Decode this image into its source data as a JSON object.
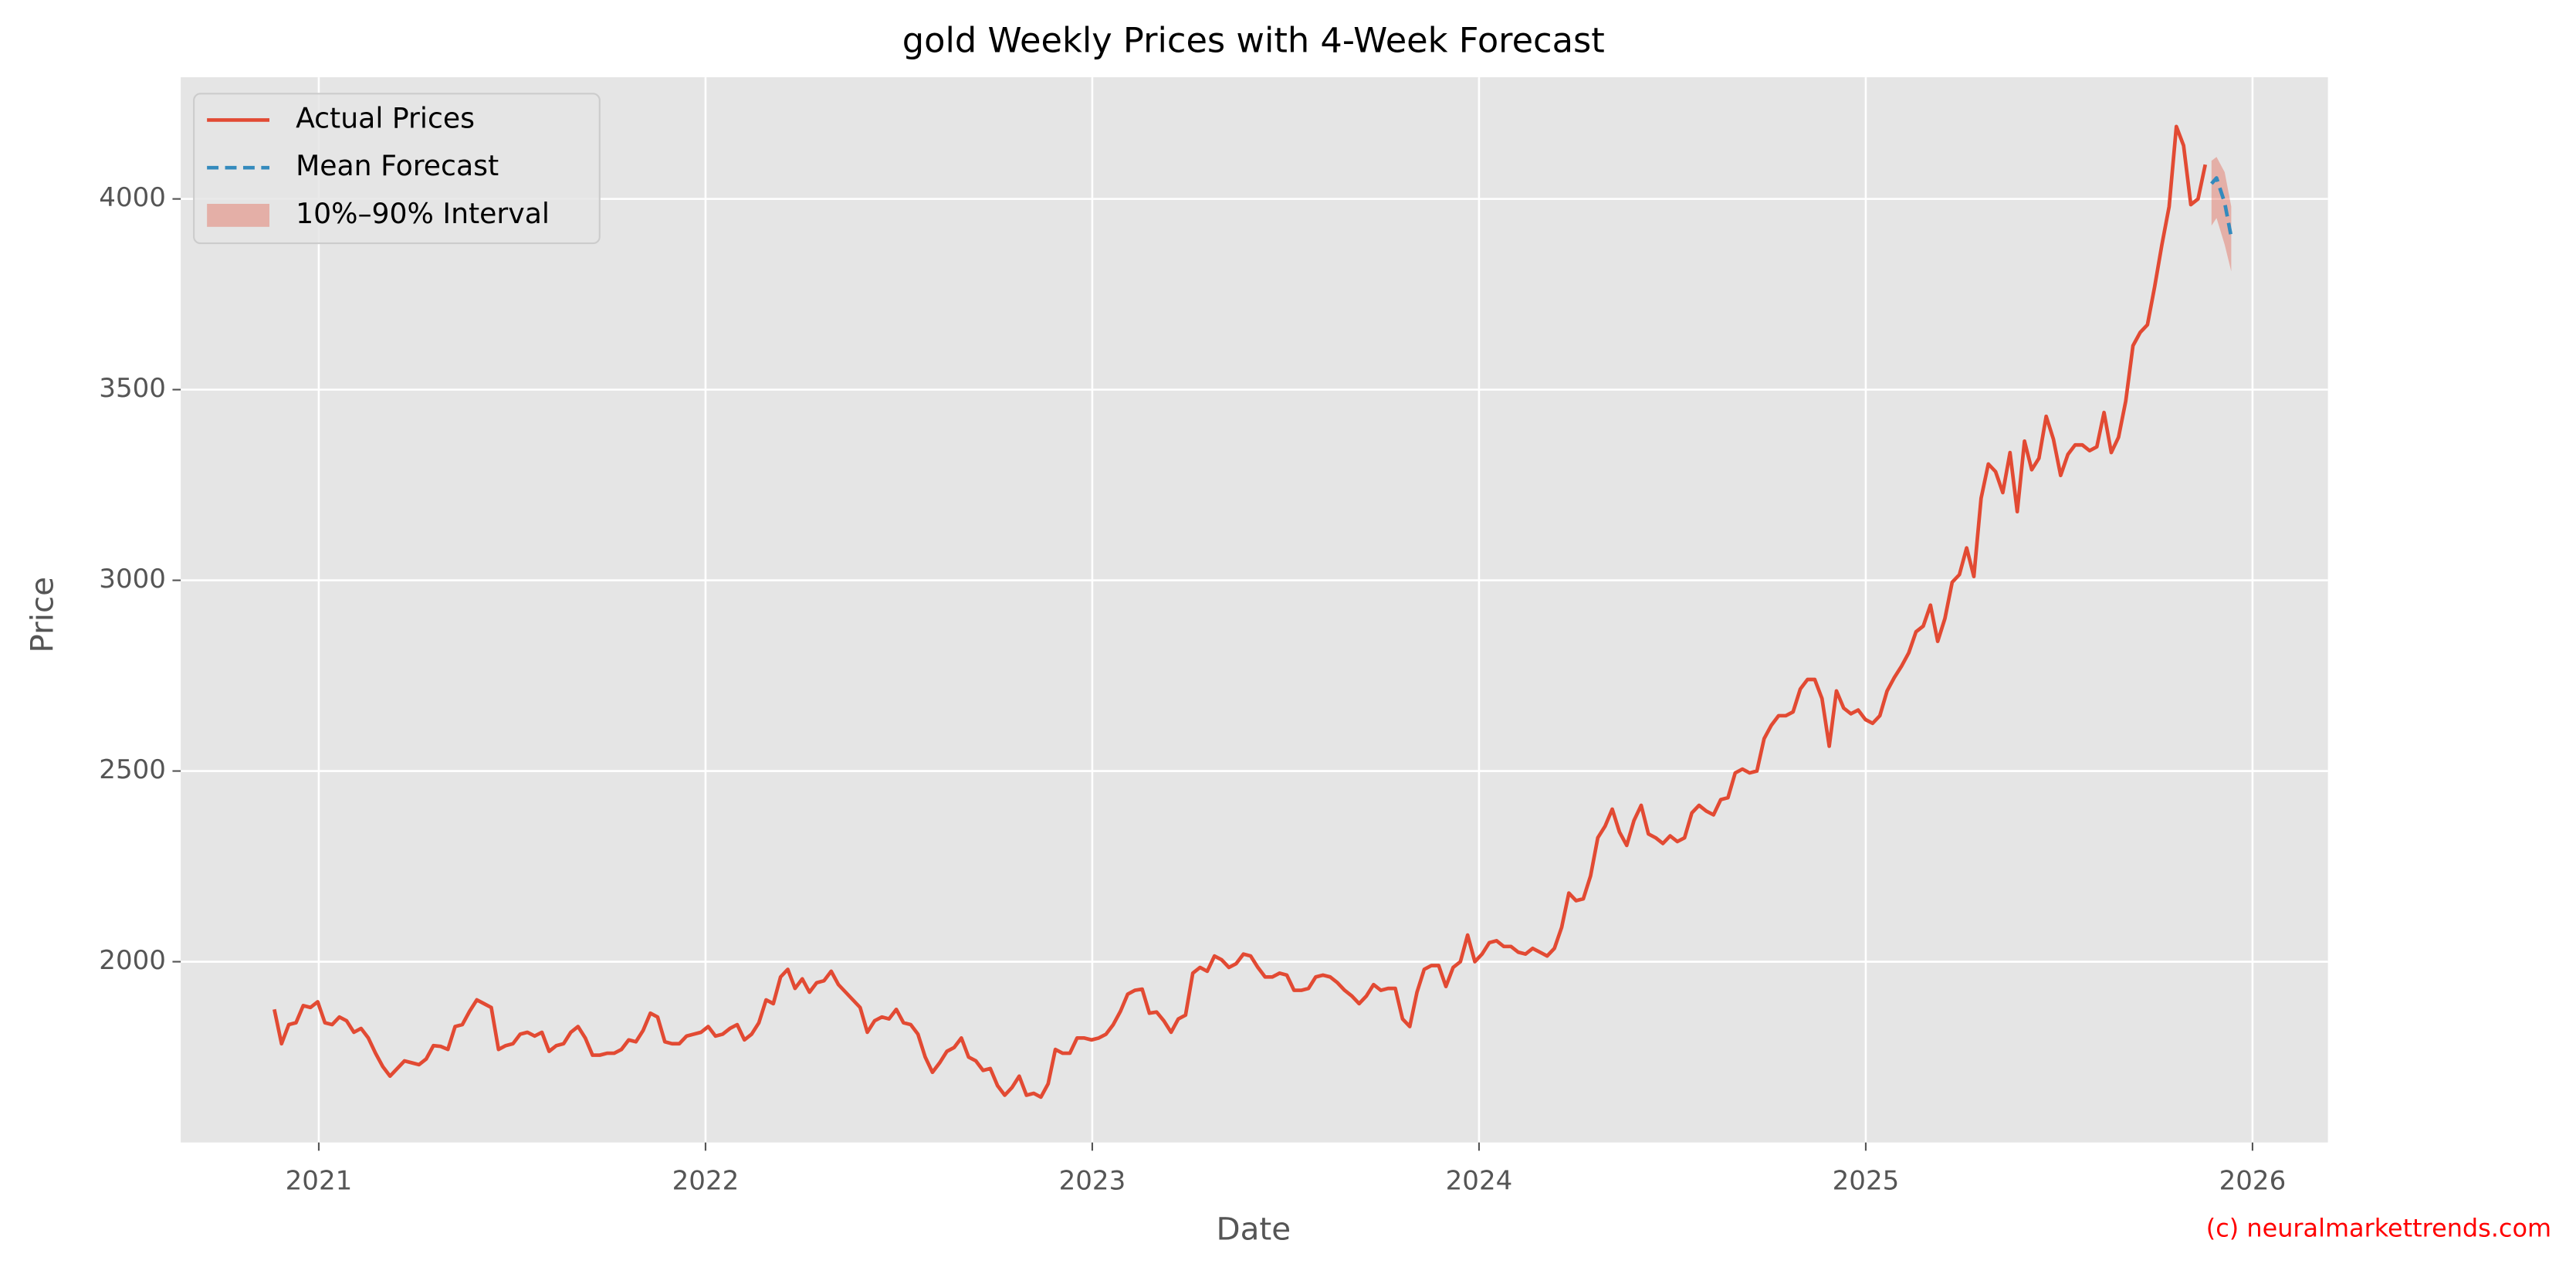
{
  "chart_data": {
    "type": "line",
    "title": "gold Weekly Prices with 4-Week Forecast",
    "xlabel": "Date",
    "ylabel": "Price",
    "xlim": [
      2020.643,
      2026.195
    ],
    "ylim": [
      1526,
      4319
    ],
    "xticks": [
      2021,
      2022,
      2023,
      2024,
      2025,
      2026
    ],
    "yticks": [
      2000,
      2500,
      3000,
      3500,
      4000
    ],
    "grid": true,
    "legend": "upper left",
    "series": [
      {
        "name": "Actual Prices",
        "color": "#E24A33",
        "style": "solid",
        "x": [
          2020.885,
          2020.9037,
          2020.9224,
          2020.9411,
          2020.9598,
          2020.9785,
          2020.9972,
          2021.0159,
          2021.0346,
          2021.0533,
          2021.072,
          2021.0907,
          2021.1094,
          2021.1281,
          2021.1468,
          2021.1655,
          2021.1842,
          2021.2029,
          2021.2216,
          2021.2403,
          2021.259,
          2021.2777,
          2021.2964,
          2021.3151,
          2021.3338,
          2021.3525,
          2021.3712,
          2021.3899,
          2021.4086,
          2021.4273,
          2021.446,
          2021.4647,
          2021.4834,
          2021.5021,
          2021.5208,
          2021.5395,
          2021.5582,
          2021.5769,
          2021.5956,
          2021.6143,
          2021.633,
          2021.6517,
          2021.6704,
          2021.6891,
          2021.7078,
          2021.7265,
          2021.7452,
          2021.7639,
          2021.7826,
          2021.8013,
          2021.82,
          2021.8387,
          2021.8574,
          2021.8761,
          2021.8948,
          2021.9135,
          2021.9322,
          2021.9509,
          2021.9696,
          2021.9883,
          2022.007,
          2022.0257,
          2022.0444,
          2022.0631,
          2022.0818,
          2022.1005,
          2022.1192,
          2022.1379,
          2022.1566,
          2022.1753,
          2022.194,
          2022.2127,
          2022.2314,
          2022.2501,
          2022.2688,
          2022.2875,
          2022.3062,
          2022.3249,
          2022.3436,
          2022.3623,
          2022.381,
          2022.3997,
          2022.4184,
          2022.4371,
          2022.4558,
          2022.4745,
          2022.4932,
          2022.5119,
          2022.5306,
          2022.5493,
          2022.568,
          2022.5867,
          2022.6054,
          2022.6241,
          2022.6428,
          2022.6615,
          2022.6802,
          2022.6989,
          2022.7176,
          2022.7363,
          2022.755,
          2022.7737,
          2022.7924,
          2022.8111,
          2022.8298,
          2022.8485,
          2022.8672,
          2022.8859,
          2022.9046,
          2022.9233,
          2022.942,
          2022.9607,
          2022.9794,
          2022.9981,
          2023.0168,
          2023.0355,
          2023.0542,
          2023.0729,
          2023.0916,
          2023.1103,
          2023.129,
          2023.1477,
          2023.1664,
          2023.1851,
          2023.2038,
          2023.2225,
          2023.2412,
          2023.2599,
          2023.2786,
          2023.2973,
          2023.316,
          2023.3347,
          2023.3534,
          2023.3721,
          2023.3908,
          2023.4095,
          2023.4282,
          2023.4469,
          2023.4656,
          2023.4843,
          2023.503,
          2023.5217,
          2023.5404,
          2023.5591,
          2023.5778,
          2023.5965,
          2023.6152,
          2023.6339,
          2023.6526,
          2023.6713,
          2023.69,
          2023.7087,
          2023.7274,
          2023.7461,
          2023.7648,
          2023.7835,
          2023.8022,
          2023.8209,
          2023.8396,
          2023.8583,
          2023.877,
          2023.8957,
          2023.9144,
          2023.9331,
          2023.9518,
          2023.9705,
          2023.9892,
          2024.0079,
          2024.0266,
          2024.0453,
          2024.064,
          2024.0827,
          2024.1014,
          2024.1201,
          2024.1388,
          2024.1575,
          2024.1762,
          2024.1949,
          2024.2136,
          2024.2323,
          2024.251,
          2024.2697,
          2024.2884,
          2024.3071,
          2024.3258,
          2024.3445,
          2024.3632,
          2024.3819,
          2024.4006,
          2024.4193,
          2024.438,
          2024.4567,
          2024.4754,
          2024.4941,
          2024.5128,
          2024.5315,
          2024.5502,
          2024.5689,
          2024.5876,
          2024.6063,
          2024.625,
          2024.6437,
          2024.6624,
          2024.6811,
          2024.6998,
          2024.7185,
          2024.7372,
          2024.7559,
          2024.7746,
          2024.7933,
          2024.812,
          2024.8307,
          2024.8494,
          2024.8681,
          2024.8868,
          2024.9055,
          2024.9242,
          2024.9429,
          2024.9616,
          2024.9803,
          2024.999,
          2025.0177,
          2025.0364,
          2025.0551,
          2025.0738,
          2025.0925,
          2025.1112,
          2025.1299,
          2025.1486,
          2025.1673,
          2025.186,
          2025.2047,
          2025.2234,
          2025.2421,
          2025.2608,
          2025.2795,
          2025.2982,
          2025.3169,
          2025.3356,
          2025.3543,
          2025.373,
          2025.3917,
          2025.4104,
          2025.4291,
          2025.4478,
          2025.4665,
          2025.4852,
          2025.5039,
          2025.5226,
          2025.5413,
          2025.56,
          2025.5787,
          2025.5974,
          2025.6161,
          2025.6348,
          2025.6535,
          2025.6722,
          2025.6909,
          2025.7096,
          2025.7283,
          2025.747,
          2025.7657,
          2025.7844,
          2025.8031,
          2025.8218,
          2025.8405,
          2025.8592,
          2025.8779
        ],
        "values": [
          1875,
          1785,
          1835,
          1840,
          1885,
          1880,
          1895,
          1840,
          1835,
          1855,
          1845,
          1815,
          1825,
          1800,
          1760,
          1725,
          1700,
          1720,
          1740,
          1735,
          1730,
          1745,
          1780,
          1778,
          1770,
          1830,
          1835,
          1870,
          1900,
          1890,
          1880,
          1770,
          1780,
          1785,
          1810,
          1815,
          1805,
          1815,
          1765,
          1780,
          1785,
          1815,
          1830,
          1800,
          1755,
          1755,
          1760,
          1760,
          1770,
          1795,
          1790,
          1820,
          1865,
          1855,
          1790,
          1785,
          1785,
          1805,
          1810,
          1815,
          1830,
          1805,
          1810,
          1825,
          1835,
          1795,
          1810,
          1840,
          1900,
          1890,
          1960,
          1980,
          1930,
          1955,
          1920,
          1945,
          1950,
          1975,
          1940,
          1920,
          1900,
          1880,
          1815,
          1845,
          1855,
          1850,
          1875,
          1840,
          1835,
          1810,
          1750,
          1710,
          1735,
          1765,
          1775,
          1800,
          1750,
          1740,
          1715,
          1720,
          1675,
          1650,
          1670,
          1700,
          1650,
          1655,
          1645,
          1680,
          1770,
          1760,
          1760,
          1800,
          1800,
          1795,
          1800,
          1810,
          1835,
          1870,
          1915,
          1925,
          1928,
          1865,
          1868,
          1845,
          1815,
          1850,
          1860,
          1970,
          1985,
          1975,
          2015,
          2005,
          1985,
          1995,
          2020,
          2015,
          1985,
          1960,
          1960,
          1970,
          1965,
          1925,
          1925,
          1930,
          1960,
          1965,
          1960,
          1945,
          1925,
          1910,
          1890,
          1910,
          1940,
          1925,
          1930,
          1930,
          1850,
          1830,
          1920,
          1980,
          1990,
          1990,
          1935,
          1985,
          2000,
          2070,
          2000,
          2020,
          2050,
          2055,
          2040,
          2040,
          2025,
          2020,
          2035,
          2025,
          2015,
          2035,
          2090,
          2180,
          2160,
          2165,
          2225,
          2325,
          2355,
          2400,
          2340,
          2305,
          2370,
          2410,
          2335,
          2325,
          2310,
          2330,
          2315,
          2325,
          2390,
          2410,
          2395,
          2385,
          2425,
          2430,
          2495,
          2505,
          2495,
          2500,
          2585,
          2620,
          2645,
          2645,
          2655,
          2715,
          2740,
          2740,
          2690,
          2565,
          2710,
          2665,
          2650,
          2660,
          2635,
          2625,
          2645,
          2710,
          2745,
          2775,
          2810,
          2865,
          2880,
          2935,
          2840,
          2900,
          2995,
          3015,
          3085,
          3010,
          3215,
          3305,
          3285,
          3230,
          3335,
          3180,
          3365,
          3290,
          3320,
          3430,
          3370,
          3275,
          3330,
          3355,
          3355,
          3340,
          3350,
          3440,
          3335,
          3375,
          3470,
          3615,
          3650,
          3670,
          3770,
          3880,
          3980,
          4190,
          4140,
          3985,
          4000,
          4090
        ]
      },
      {
        "name": "Mean Forecast",
        "color": "#348ABD",
        "style": "dashed",
        "x": [
          2025.894,
          2025.907,
          2025.928,
          2025.945
        ],
        "values": [
          4040,
          4055,
          3990,
          3900
        ]
      }
    ],
    "bands": [
      {
        "name": "10%–90% Interval",
        "color": "#E24A33",
        "alpha": 0.35,
        "x": [
          2025.894,
          2025.907,
          2025.928,
          2025.945
        ],
        "lower": [
          3930,
          3950,
          3880,
          3810
        ],
        "upper": [
          4100,
          4110,
          4070,
          3980
        ]
      }
    ]
  },
  "watermark": "(c) neuralmarkettrends.com"
}
